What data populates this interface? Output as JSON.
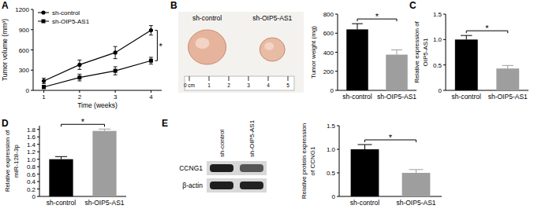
{
  "chart_data": [
    {
      "panel": "A",
      "type": "line",
      "xlabel": "Time (weeks)",
      "ylabel": "Tumor volume (mm³)",
      "x": [
        1,
        2,
        3,
        4
      ],
      "xlim": [
        0.7,
        4.3
      ],
      "xticks": [
        1,
        2,
        3,
        4
      ],
      "ylim": [
        0,
        1200
      ],
      "yticks": [
        0,
        300,
        600,
        900,
        1200
      ],
      "grid": false,
      "legend": "upper left",
      "annotation": "*",
      "series": [
        {
          "name": "sh-control",
          "color": "#000000",
          "marker": "circle",
          "values": [
            140,
            380,
            560,
            890
          ],
          "errors": [
            40,
            70,
            90,
            70
          ]
        },
        {
          "name": "sh-OIP5-AS1",
          "color": "#000000",
          "marker": "square",
          "values": [
            50,
            190,
            290,
            440
          ],
          "errors": [
            25,
            50,
            60,
            50
          ]
        }
      ]
    },
    {
      "panel": "B",
      "type": "bar",
      "ylabel": [
        "Tumor weight (mg)"
      ],
      "photo": {
        "labels": [
          "sh-control",
          "sh-OIP5-AS1"
        ],
        "scale": [
          "0 cm",
          "1",
          "2",
          "3",
          "4",
          "5"
        ]
      },
      "categories": [
        "sh-control",
        "sh-OIP5-AS1"
      ],
      "values": [
        640,
        375
      ],
      "errors": [
        60,
        50
      ],
      "colors": [
        "#000000",
        "#9e9e9e"
      ],
      "ylim": [
        0,
        800
      ],
      "yticks": [
        0,
        200,
        400,
        600,
        800
      ],
      "grid": false,
      "annotation": "*"
    },
    {
      "panel": "C",
      "type": "bar",
      "ylabel": [
        "Relative expression of",
        "OIP5-AS1"
      ],
      "categories": [
        "sh-control",
        "sh-OIP5-AS1"
      ],
      "values": [
        1.0,
        0.43
      ],
      "errors": [
        0.08,
        0.06
      ],
      "colors": [
        "#000000",
        "#9e9e9e"
      ],
      "ylim": [
        0,
        1.5
      ],
      "yticks": [
        0,
        0.5,
        {
          "value": 1,
          "label": "1.0"
        },
        1.5
      ],
      "grid": false,
      "annotation": "*"
    },
    {
      "panel": "D",
      "type": "bar",
      "ylabel": [
        "Relative expression of",
        "miR-128-3p"
      ],
      "categories": [
        "sh-control",
        "sh-OIP5-AS1"
      ],
      "values": [
        1.0,
        1.76
      ],
      "errors": [
        0.07,
        0.05
      ],
      "colors": [
        "#000000",
        "#9e9e9e"
      ],
      "ylim": [
        0,
        1.9
      ],
      "yticks": [
        0,
        0.2,
        0.4,
        0.6,
        0.8,
        {
          "value": 1,
          "label": "1.0"
        },
        1.2,
        1.4,
        1.6,
        1.8
      ],
      "grid": false,
      "annotation": "*"
    },
    {
      "panel": "E",
      "type": "bar",
      "ylabel": [
        "Relative protein expression",
        "of CCNG1"
      ],
      "blot": {
        "lanes": [
          "sh-control",
          "sh-OIP5-AS1"
        ],
        "bands": [
          "CCNG1",
          "β-actin"
        ]
      },
      "categories": [
        "sh-control",
        "sh-OIP5-AS1"
      ],
      "values": [
        1.0,
        0.5
      ],
      "errors": [
        0.1,
        0.07
      ],
      "colors": [
        "#000000",
        "#9e9e9e"
      ],
      "ylim": [
        0,
        1.5
      ],
      "yticks": [
        0,
        0.5,
        {
          "value": 1,
          "label": "1.0"
        },
        1.5
      ],
      "grid": false,
      "annotation": "*"
    }
  ]
}
